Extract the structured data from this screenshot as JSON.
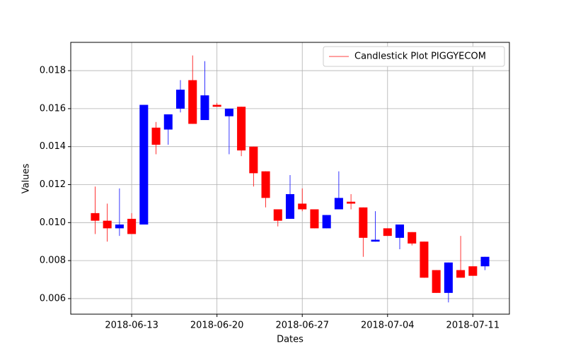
{
  "chart_data": {
    "type": "candlestick",
    "x_label": "Dates",
    "y_label": "Values",
    "x": [
      "2018-06-10",
      "2018-06-11",
      "2018-06-12",
      "2018-06-13",
      "2018-06-14",
      "2018-06-15",
      "2018-06-16",
      "2018-06-17",
      "2018-06-18",
      "2018-06-19",
      "2018-06-20",
      "2018-06-21",
      "2018-06-22",
      "2018-06-23",
      "2018-06-24",
      "2018-06-25",
      "2018-06-26",
      "2018-06-27",
      "2018-06-28",
      "2018-06-29",
      "2018-06-30",
      "2018-07-01",
      "2018-07-02",
      "2018-07-03",
      "2018-07-04",
      "2018-07-05",
      "2018-07-06",
      "2018-07-07",
      "2018-07-08",
      "2018-07-09",
      "2018-07-10",
      "2018-07-11",
      "2018-07-12"
    ],
    "series": [
      {
        "name": "Candlestick Plot PIGGYECOM",
        "color": "#ff0000",
        "up_color": "#0000ff",
        "down_color": "#ff0000",
        "open": [
          0.0105,
          0.0101,
          0.0097,
          0.0102,
          0.0099,
          0.015,
          0.0149,
          0.016,
          0.0175,
          0.0154,
          0.0162,
          0.0156,
          0.0161,
          0.014,
          0.0127,
          0.0107,
          0.0102,
          0.011,
          0.0107,
          0.0097,
          0.0107,
          0.0111,
          0.0108,
          0.009,
          0.0097,
          0.0092,
          0.0095,
          0.009,
          0.0075,
          0.0063,
          0.0075,
          0.0077,
          0.0077
        ],
        "high": [
          0.0119,
          0.011,
          0.0118,
          0.0105,
          0.0162,
          0.0153,
          0.0157,
          0.0175,
          0.0188,
          0.0185,
          0.0163,
          0.016,
          0.0161,
          0.014,
          0.0127,
          0.0107,
          0.0125,
          0.0118,
          0.0107,
          0.0104,
          0.0127,
          0.0115,
          0.0108,
          0.0106,
          0.0097,
          0.0099,
          0.0095,
          0.009,
          0.0075,
          0.0079,
          0.0093,
          0.0077,
          0.0082
        ],
        "low": [
          0.0094,
          0.009,
          0.0093,
          0.0094,
          0.0099,
          0.0136,
          0.0141,
          0.0158,
          0.0152,
          0.0154,
          0.0161,
          0.0136,
          0.0135,
          0.0119,
          0.0108,
          0.0098,
          0.0102,
          0.0106,
          0.0097,
          0.0097,
          0.0107,
          0.0107,
          0.0082,
          0.009,
          0.0093,
          0.0086,
          0.0088,
          0.0071,
          0.0063,
          0.0058,
          0.0071,
          0.0072,
          0.0075
        ],
        "close": [
          0.0101,
          0.0097,
          0.0099,
          0.0094,
          0.0162,
          0.0141,
          0.0157,
          0.017,
          0.0152,
          0.0167,
          0.0161,
          0.016,
          0.0138,
          0.0126,
          0.0113,
          0.0101,
          0.0115,
          0.0107,
          0.0097,
          0.0104,
          0.0113,
          0.011,
          0.0092,
          0.0091,
          0.0093,
          0.0099,
          0.0089,
          0.0071,
          0.0063,
          0.0079,
          0.0071,
          0.0072,
          0.0082
        ]
      }
    ],
    "xlim": [
      "2018-06-08",
      "2018-07-14"
    ],
    "xticks": [
      "2018-06-13",
      "2018-06-20",
      "2018-06-27",
      "2018-07-04",
      "2018-07-11"
    ],
    "ylim": [
      0.00518,
      0.01949
    ],
    "yticks": [
      0.006,
      0.008,
      {
        "value": 0.01,
        "label": "0.010"
      },
      0.012,
      0.014,
      0.016,
      0.018
    ],
    "grid": true,
    "legend": "upper right"
  }
}
